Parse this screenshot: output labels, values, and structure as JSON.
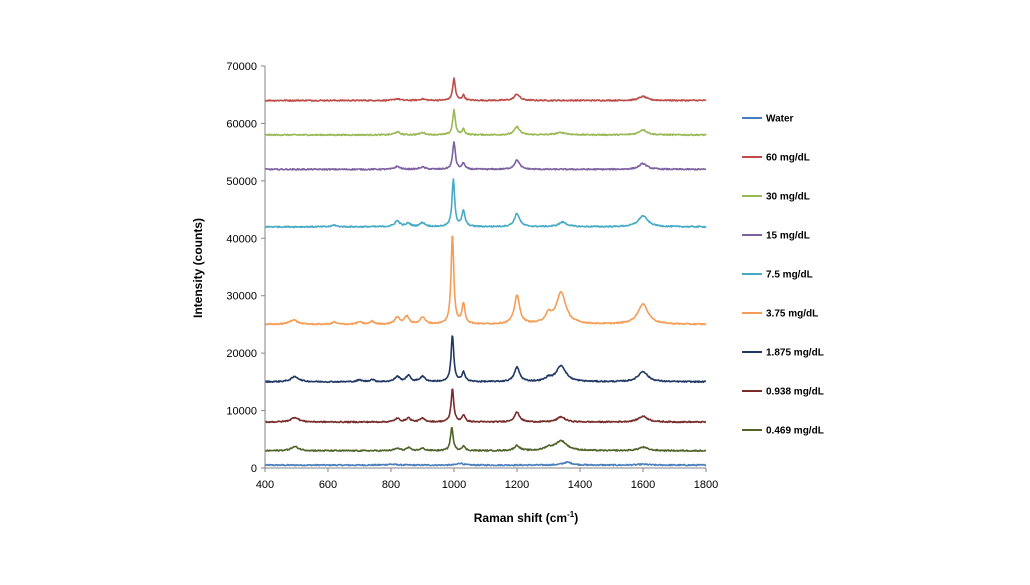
{
  "chart_data": {
    "type": "line",
    "title": "",
    "xlabel": "Raman shift (cm",
    "xlabel_sup": "-1",
    "xlabel_end": ")",
    "ylabel": "Intensity (counts)",
    "xlim": [
      400,
      1800
    ],
    "ylim": [
      0,
      70000
    ],
    "xticks": [
      400,
      600,
      800,
      1000,
      1200,
      1400,
      1600,
      1800
    ],
    "yticks": [
      0,
      10000,
      20000,
      30000,
      40000,
      50000,
      60000,
      70000
    ],
    "xtick_labels": [
      "400",
      "600",
      "800",
      "1000",
      "1200",
      "1400",
      "1600",
      "1800"
    ],
    "ytick_labels": [
      "0",
      "10000",
      "20000",
      "30000",
      "40000",
      "50000",
      "60000",
      "70000"
    ],
    "grid": false,
    "legend_position": "right",
    "series": [
      {
        "name": "Water",
        "color": "#4a7ebb",
        "baseline": 500,
        "peaks": [
          [
            1020,
            350,
            10
          ],
          [
            1360,
            500,
            18
          ],
          [
            800,
            150,
            20
          ],
          [
            1600,
            150,
            20
          ]
        ]
      },
      {
        "name": "60 mg/dL",
        "color": "#be4b48",
        "baseline": 64000,
        "peaks": [
          [
            1000,
            3800,
            5
          ],
          [
            1030,
            900,
            5
          ],
          [
            1200,
            1100,
            10
          ],
          [
            1600,
            700,
            15
          ],
          [
            820,
            300,
            10
          ],
          [
            900,
            250,
            10
          ]
        ]
      },
      {
        "name": "30 mg/dL",
        "color": "#98b954",
        "baseline": 58000,
        "peaks": [
          [
            1000,
            4300,
            5
          ],
          [
            1030,
            1000,
            5
          ],
          [
            1200,
            1400,
            10
          ],
          [
            1600,
            900,
            15
          ],
          [
            820,
            500,
            10
          ],
          [
            900,
            400,
            10
          ],
          [
            1340,
            400,
            20
          ]
        ]
      },
      {
        "name": "15 mg/dL",
        "color": "#7d60a0",
        "baseline": 52000,
        "peaks": [
          [
            1000,
            4800,
            5
          ],
          [
            1030,
            1100,
            5
          ],
          [
            1200,
            1600,
            10
          ],
          [
            1600,
            1000,
            15
          ],
          [
            820,
            500,
            10
          ],
          [
            900,
            400,
            10
          ]
        ]
      },
      {
        "name": "7.5 mg/dL",
        "color": "#46aac5",
        "baseline": 42000,
        "peaks": [
          [
            998,
            8200,
            5
          ],
          [
            1030,
            2700,
            6
          ],
          [
            1200,
            2300,
            10
          ],
          [
            1600,
            1900,
            18
          ],
          [
            820,
            1000,
            10
          ],
          [
            855,
            600,
            8
          ],
          [
            900,
            700,
            10
          ],
          [
            1345,
            800,
            15
          ],
          [
            620,
            300,
            8
          ]
        ]
      },
      {
        "name": "3.75 mg/dL",
        "color": "#f59d56",
        "baseline": 25000,
        "peaks": [
          [
            995,
            15800,
            5
          ],
          [
            1030,
            3500,
            6
          ],
          [
            1200,
            5000,
            10
          ],
          [
            1340,
            5500,
            18
          ],
          [
            1300,
            1500,
            12
          ],
          [
            1600,
            3500,
            20
          ],
          [
            820,
            1200,
            10
          ],
          [
            850,
            1400,
            8
          ],
          [
            900,
            1200,
            10
          ],
          [
            490,
            800,
            15
          ],
          [
            620,
            400,
            8
          ],
          [
            700,
            400,
            10
          ],
          [
            740,
            500,
            8
          ]
        ]
      },
      {
        "name": "1.875 mg/dL",
        "color": "#203864",
        "baseline": 15000,
        "peaks": [
          [
            995,
            8200,
            5
          ],
          [
            1030,
            1700,
            6
          ],
          [
            1200,
            2500,
            10
          ],
          [
            1340,
            2800,
            18
          ],
          [
            1300,
            600,
            12
          ],
          [
            1600,
            1800,
            18
          ],
          [
            820,
            900,
            10
          ],
          [
            855,
            1100,
            8
          ],
          [
            900,
            900,
            10
          ],
          [
            495,
            900,
            15
          ],
          [
            740,
            400,
            8
          ],
          [
            700,
            300,
            10
          ]
        ]
      },
      {
        "name": "0.938 mg/dL",
        "color": "#772c2a",
        "baseline": 8000,
        "peaks": [
          [
            995,
            5800,
            5
          ],
          [
            1030,
            1200,
            6
          ],
          [
            1200,
            1700,
            10
          ],
          [
            1340,
            900,
            15
          ],
          [
            1600,
            1000,
            18
          ],
          [
            820,
            600,
            10
          ],
          [
            855,
            700,
            8
          ],
          [
            900,
            600,
            10
          ],
          [
            495,
            800,
            15
          ]
        ]
      },
      {
        "name": "0.469 mg/dL",
        "color": "#4f6228",
        "baseline": 3000,
        "peaks": [
          [
            993,
            4100,
            5
          ],
          [
            1030,
            800,
            6
          ],
          [
            1200,
            900,
            10
          ],
          [
            1340,
            1700,
            22
          ],
          [
            1300,
            500,
            15
          ],
          [
            1600,
            600,
            18
          ],
          [
            820,
            400,
            10
          ],
          [
            855,
            500,
            8
          ],
          [
            900,
            400,
            10
          ],
          [
            495,
            700,
            15
          ]
        ]
      }
    ]
  }
}
